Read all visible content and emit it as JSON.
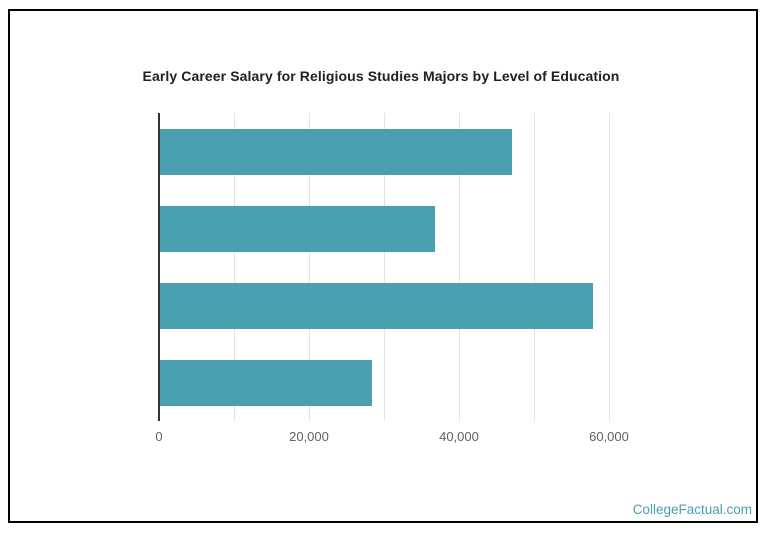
{
  "window": {
    "background": "#ffffff",
    "frame_border_color": "#000000"
  },
  "watermark": {
    "text": "CollegeFactual.com",
    "color": "#4a9fb0"
  },
  "chart_data": {
    "type": "bar",
    "orientation": "horizontal",
    "title": "Early Career Salary for Religious Studies Majors by Level of Education",
    "categories": [
      "",
      "",
      "",
      ""
    ],
    "values": [
      46900,
      36700,
      57700,
      28300
    ],
    "xlabel": "",
    "ylabel": "",
    "xlim": [
      0,
      70000
    ],
    "xticks": {
      "values": [
        0,
        10000,
        20000,
        30000,
        40000,
        50000,
        60000
      ],
      "labels": [
        "0",
        "",
        "20,000",
        "",
        "40,000",
        "",
        "60,000"
      ]
    },
    "grid": true,
    "legend": false,
    "bar_color": "#4a9fb0",
    "axis_color": "#333333",
    "gridline_color": "#e3e3e3",
    "tick_label_color": "#606266",
    "title_color": "#212121"
  }
}
